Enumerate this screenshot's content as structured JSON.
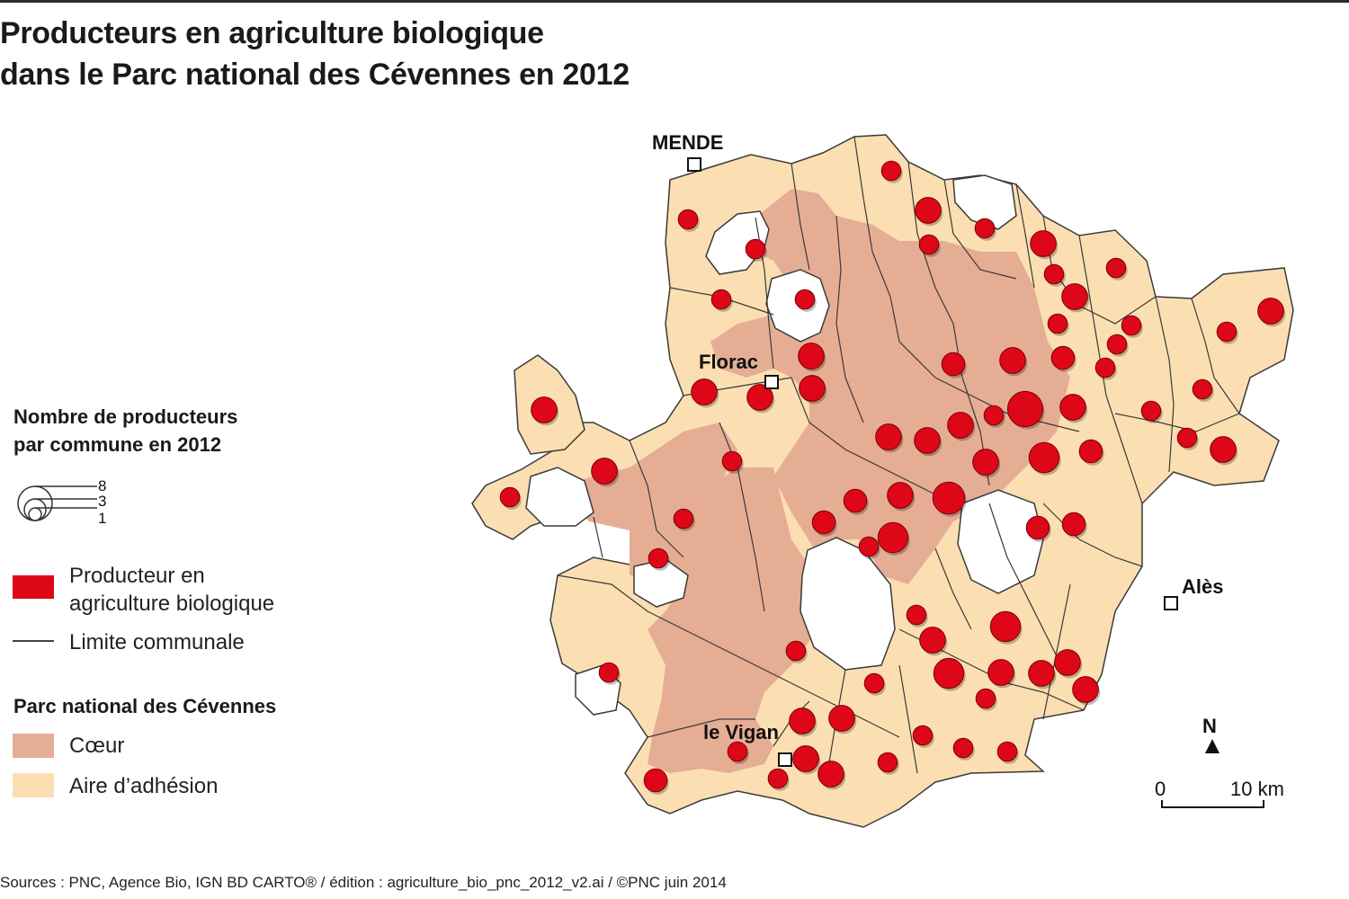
{
  "title": {
    "line1": "Producteurs en agriculture biologique",
    "line2": "dans le Parc national des Cévennes en 2012"
  },
  "legend": {
    "size_heading_line1": "Nombre de producteurs",
    "size_heading_line2": "par commune en 2012",
    "size_values": [
      "8",
      "3",
      "1"
    ],
    "producer_label_line1": "Producteur en",
    "producer_label_line2": "agriculture biologique",
    "limit_label": "Limite communale",
    "park_heading": "Parc national des Cévennes",
    "coeur_label": "Cœur",
    "adhesion_label": "Aire d’adhésion"
  },
  "towns": {
    "mende": "MENDE",
    "florac": "Florac",
    "ales": "Alès",
    "vigan": "le Vigan"
  },
  "north": "N",
  "scale": {
    "zero": "0",
    "end": "10 km"
  },
  "source": "Sources : PNC, Agence Bio, IGN BD CARTO® / édition : agriculture_bio_pnc_2012_v2.ai / ©PNC juin 2014",
  "colors": {
    "coeur": "#e6ad95",
    "adhesion": "#fbdfb2",
    "producer": "#de0718",
    "border": "#3a3a3a"
  },
  "producers_per_commune": [
    1,
    3,
    1,
    1,
    1,
    1,
    3,
    1,
    1,
    1,
    1,
    3,
    1,
    1,
    3,
    1,
    3,
    2,
    2,
    1,
    1,
    8,
    3,
    1,
    3,
    1,
    5,
    2,
    3,
    3,
    3,
    3,
    3,
    3,
    1,
    3,
    1,
    3,
    3,
    1,
    3,
    3,
    2,
    1,
    6,
    1,
    2,
    2,
    2,
    1,
    1,
    1,
    5,
    3,
    5,
    1,
    3,
    3,
    3,
    3,
    1,
    5,
    1,
    1,
    3,
    3,
    1,
    1,
    1,
    1,
    3,
    3,
    1,
    2,
    1,
    1,
    1,
    8,
    1,
    3,
    5,
    3,
    3,
    5,
    5,
    3,
    1,
    3,
    2,
    1,
    3,
    1,
    3
  ]
}
